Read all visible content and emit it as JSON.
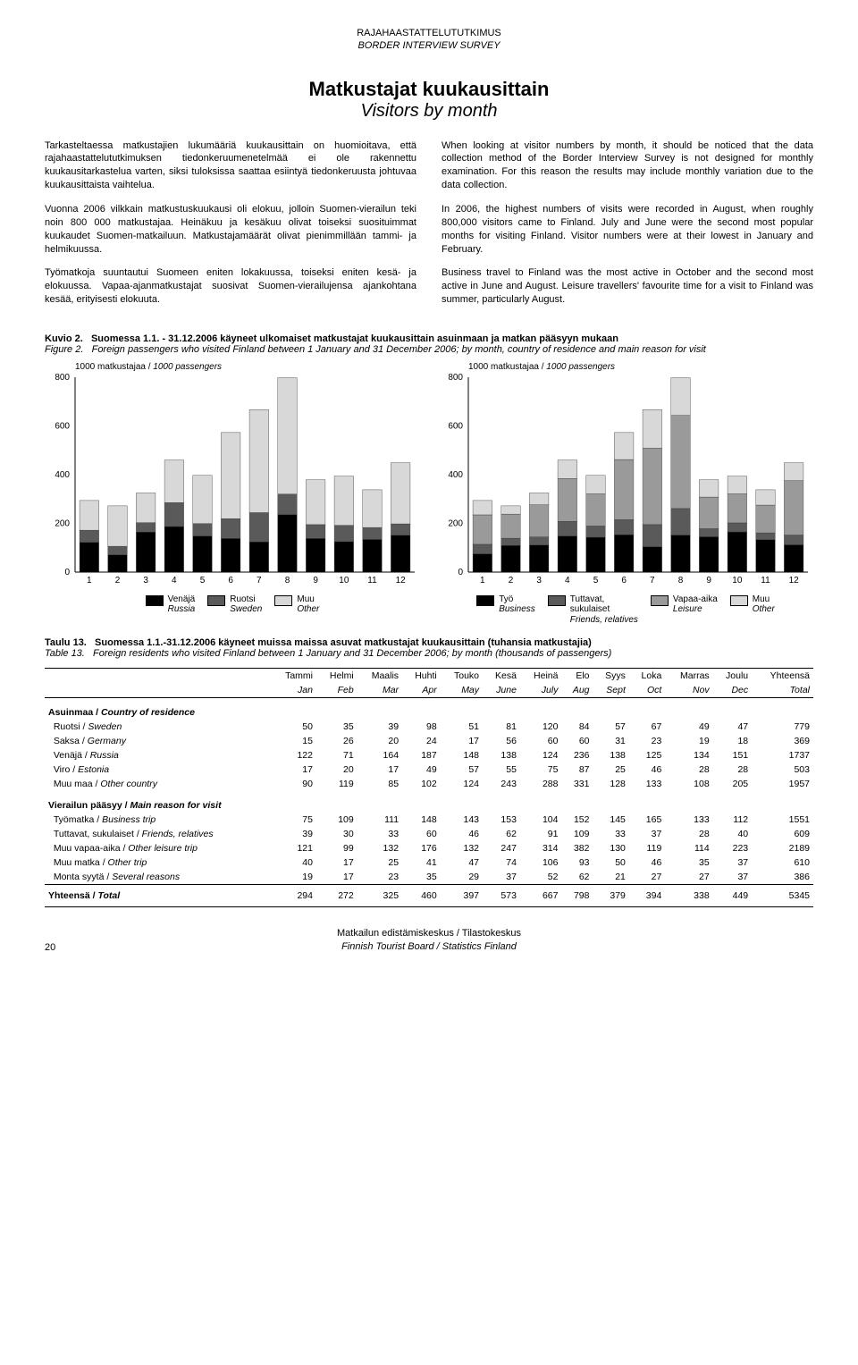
{
  "header": {
    "line1": "RAJAHAASTATTELUTUTKIMUS",
    "line2": "BORDER INTERVIEW SURVEY"
  },
  "title": {
    "main": "Matkustajat kuukausittain",
    "sub": "Visitors by month"
  },
  "text": {
    "left": {
      "p1": "Tarkasteltaessa matkustajien lukumääriä kuukausittain on huomioitava, että rajahaastattelututkimuksen tiedonkeruumenetelmää ei ole rakennettu kuukausitarkastelua varten, siksi tuloksissa saattaa esiintyä tiedonkeruusta johtuvaa kuukausittaista vaihtelua.",
      "p2": "Vuonna 2006 vilkkain matkustuskuukausi oli elokuu, jolloin Suomen-vierailun teki noin 800 000 matkustajaa. Heinäkuu ja kesäkuu olivat toiseksi suosituimmat kuukaudet Suomen-matkailuun. Matkustajamäärät olivat pienimmillään tammi- ja helmikuussa.",
      "p3": "Työmatkoja suuntautui Suomeen eniten lokakuussa, toiseksi eniten kesä- ja elokuussa. Vapaa-ajanmatkustajat suosivat Suomen-vierailujensa ajankohtana kesää, erityisesti elokuuta."
    },
    "right": {
      "p1": "When looking at visitor numbers by month, it should be noticed that the data collection method of the Border Interview Survey is not designed for monthly examination. For this reason the results may include monthly variation due to the data collection.",
      "p2": "In 2006, the highest numbers of visits were recorded in August, when roughly 800,000 visitors came to Finland. July and June were the second most popular months for visiting Finland. Visitor numbers were at their lowest in January and February.",
      "p3": "Business travel to Finland was the most active in October and the second most active in June and August. Leisure travellers' favourite time for a visit to Finland was summer, particularly August."
    }
  },
  "fig_caption": {
    "title_fi_a": "Kuvio 2.",
    "title_fi_b": "Suomessa 1.1. - 31.12.2006 käyneet ulkomaiset matkustajat kuukausittain asuinmaan ja matkan pääsyyn mukaan",
    "title_en_a": "Figure 2.",
    "title_en_b": "Foreign passengers who visited Finland between 1 January and 31 December 2006; by month, country of residence and main reason for visit"
  },
  "chart_left": {
    "axis_label": "1000 matkustajaa / 1000 passengers",
    "ymax": 800,
    "ytick": 200,
    "categories": [
      1,
      2,
      3,
      4,
      5,
      6,
      7,
      8,
      9,
      10,
      11,
      12
    ],
    "series": [
      {
        "name_fi": "Venäjä",
        "name_en": "Russia",
        "color": "#000000",
        "values": [
          122,
          71,
          164,
          187,
          148,
          138,
          124,
          236,
          138,
          125,
          134,
          151
        ]
      },
      {
        "name_fi": "Ruotsi",
        "name_en": "Sweden",
        "color": "#5a5a5a",
        "values": [
          50,
          35,
          39,
          98,
          51,
          81,
          120,
          84,
          57,
          67,
          49,
          47
        ]
      },
      {
        "name_fi": "Muu",
        "name_en": "Other",
        "color": "#d8d8d8",
        "values": [
          122,
          166,
          122,
          175,
          198,
          354,
          423,
          478,
          184,
          202,
          155,
          251
        ]
      }
    ]
  },
  "chart_right": {
    "axis_label": "1000 matkustajaa / 1000 passengers",
    "ymax": 800,
    "ytick": 200,
    "categories": [
      1,
      2,
      3,
      4,
      5,
      6,
      7,
      8,
      9,
      10,
      11,
      12
    ],
    "series": [
      {
        "name_fi": "Työ",
        "name_en": "Business",
        "color": "#000000",
        "values": [
          75,
          109,
          111,
          148,
          143,
          153,
          104,
          152,
          145,
          165,
          133,
          112
        ]
      },
      {
        "name_fi": "Tuttavat,\nsukulaiset",
        "name_en": "Friends, relatives",
        "color": "#5a5a5a",
        "values": [
          39,
          30,
          33,
          60,
          46,
          62,
          91,
          109,
          33,
          37,
          28,
          40
        ]
      },
      {
        "name_fi": "Vapaa-aika",
        "name_en": "Leisure",
        "color": "#9a9a9a",
        "values": [
          121,
          99,
          132,
          176,
          132,
          247,
          314,
          382,
          130,
          119,
          114,
          223
        ]
      },
      {
        "name_fi": "Muu",
        "name_en": "Other",
        "color": "#d8d8d8",
        "values": [
          59,
          34,
          49,
          76,
          76,
          111,
          158,
          155,
          71,
          73,
          63,
          74
        ]
      }
    ]
  },
  "table_caption": {
    "title_fi_a": "Taulu 13.",
    "title_fi_b": "Suomessa 1.1.-31.12.2006 käyneet muissa maissa asuvat matkustajat kuukausittain (tuhansia matkustajia)",
    "title_en_a": "Table 13.",
    "title_en_b": "Foreign residents who visited Finland between 1 January and 31 December 2006; by month (thousands of passengers)"
  },
  "table": {
    "head_fi": [
      "Tammi",
      "Helmi",
      "Maalis",
      "Huhti",
      "Touko",
      "Kesä",
      "Heinä",
      "Elo",
      "Syys",
      "Loka",
      "Marras",
      "Joulu",
      "Yhteensä"
    ],
    "head_en": [
      "Jan",
      "Feb",
      "Mar",
      "Apr",
      "May",
      "June",
      "July",
      "Aug",
      "Sept",
      "Oct",
      "Nov",
      "Dec",
      "Total"
    ],
    "section1": {
      "fi": "Asuinmaa /",
      "en": "Country of residence"
    },
    "rows1": [
      {
        "label_fi": "Ruotsi /",
        "label_en": "Sweden",
        "v": [
          50,
          35,
          39,
          98,
          51,
          81,
          120,
          84,
          57,
          67,
          49,
          47,
          779
        ]
      },
      {
        "label_fi": "Saksa /",
        "label_en": "Germany",
        "v": [
          15,
          26,
          20,
          24,
          17,
          56,
          60,
          60,
          31,
          23,
          19,
          18,
          369
        ]
      },
      {
        "label_fi": "Venäjä /",
        "label_en": "Russia",
        "v": [
          122,
          71,
          164,
          187,
          148,
          138,
          124,
          236,
          138,
          125,
          134,
          151,
          1737
        ]
      },
      {
        "label_fi": "Viro /",
        "label_en": "Estonia",
        "v": [
          17,
          20,
          17,
          49,
          57,
          55,
          75,
          87,
          25,
          46,
          28,
          28,
          503
        ]
      },
      {
        "label_fi": "Muu maa /",
        "label_en": "Other country",
        "v": [
          90,
          119,
          85,
          102,
          124,
          243,
          288,
          331,
          128,
          133,
          108,
          205,
          1957
        ]
      }
    ],
    "section2": {
      "fi": "Vierailun pääsyy /",
      "en": "Main reason for visit"
    },
    "rows2": [
      {
        "label_fi": "Työmatka /",
        "label_en": "Business trip",
        "v": [
          75,
          109,
          111,
          148,
          143,
          153,
          104,
          152,
          145,
          165,
          133,
          112,
          1551
        ]
      },
      {
        "label_fi": "Tuttavat, sukulaiset /",
        "label_en": "Friends, relatives",
        "v": [
          39,
          30,
          33,
          60,
          46,
          62,
          91,
          109,
          33,
          37,
          28,
          40,
          609
        ]
      },
      {
        "label_fi": "Muu vapaa-aika /",
        "label_en": "Other leisure trip",
        "v": [
          121,
          99,
          132,
          176,
          132,
          247,
          314,
          382,
          130,
          119,
          114,
          223,
          2189
        ]
      },
      {
        "label_fi": "Muu matka /",
        "label_en": "Other trip",
        "v": [
          40,
          17,
          25,
          41,
          47,
          74,
          106,
          93,
          50,
          46,
          35,
          37,
          610
        ]
      },
      {
        "label_fi": "Monta syytä /",
        "label_en": "Several reasons",
        "v": [
          19,
          17,
          23,
          35,
          29,
          37,
          52,
          62,
          21,
          27,
          27,
          37,
          386
        ]
      }
    ],
    "total": {
      "fi": "Yhteensä /",
      "en": "Total",
      "v": [
        294,
        272,
        325,
        460,
        397,
        573,
        667,
        798,
        379,
        394,
        338,
        449,
        5345
      ]
    }
  },
  "footer": {
    "page": "20",
    "line1": "Matkailun edistämiskeskus / Tilastokeskus",
    "line2": "Finnish Tourist Board / Statistics Finland"
  }
}
